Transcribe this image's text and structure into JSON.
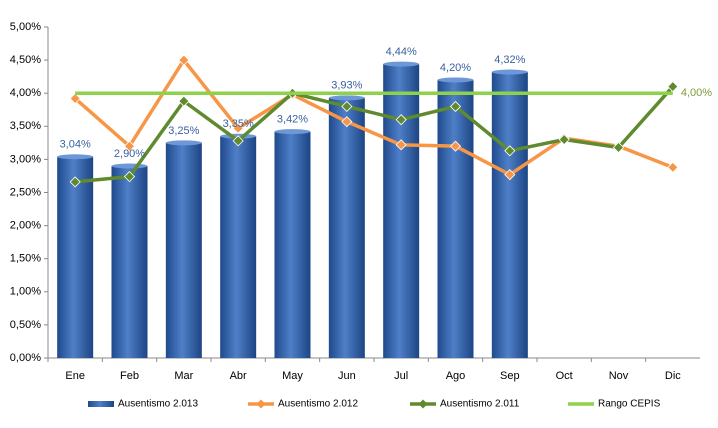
{
  "chart_data": {
    "type": "bar",
    "categories": [
      "Ene",
      "Feb",
      "Mar",
      "Abr",
      "May",
      "Jun",
      "Jul",
      "Ago",
      "Sep",
      "Oct",
      "Nov",
      "Dic"
    ],
    "ylim": [
      0,
      5
    ],
    "yticks": [
      {
        "value": 0,
        "label": "0,00%"
      },
      {
        "value": 0.5,
        "label": "0,50%"
      },
      {
        "value": 1,
        "label": "1,00%"
      },
      {
        "value": 1.5,
        "label": "1,50%"
      },
      {
        "value": 2,
        "label": "2,00%"
      },
      {
        "value": 2.5,
        "label": "2,50%"
      },
      {
        "value": 3,
        "label": "3,00%"
      },
      {
        "value": 3.5,
        "label": "3,50%"
      },
      {
        "value": 4,
        "label": "4,00%"
      },
      {
        "value": 4.5,
        "label": "4,50%"
      },
      {
        "value": 5,
        "label": "5,00%"
      }
    ],
    "grid": false,
    "legend": "bottom",
    "series": [
      {
        "name": "Ausentismo 2.013",
        "type": "bar",
        "color": "#2e5fa8",
        "values": [
          3.04,
          2.9,
          3.25,
          3.35,
          3.42,
          3.93,
          4.44,
          4.2,
          4.32,
          null,
          null,
          null
        ],
        "value_labels": [
          "3,04%",
          "2,90%",
          "3,25%",
          "3,35%",
          "3,42%",
          "3,93%",
          "4,44%",
          "4,20%",
          "4,32%",
          null,
          null,
          null
        ],
        "label_color": "#3a62a0"
      },
      {
        "name": "Ausentismo 2.012",
        "type": "line",
        "marker": "diamond",
        "color": "#f79646",
        "values": [
          3.92,
          3.2,
          4.5,
          3.47,
          3.98,
          3.57,
          3.22,
          3.2,
          2.77,
          3.32,
          3.2,
          2.88
        ]
      },
      {
        "name": "Ausentismo 2.011",
        "type": "line",
        "marker": "diamond",
        "color": "#5f8b2e",
        "values": [
          2.66,
          2.74,
          3.88,
          3.28,
          4.0,
          3.8,
          3.6,
          3.8,
          3.13,
          3.3,
          3.18,
          4.1
        ]
      },
      {
        "name": "Rango CEPIS",
        "type": "line",
        "color": "#8ed14b",
        "values": [
          4,
          4,
          4,
          4,
          4,
          4,
          4,
          4,
          4,
          4,
          4,
          4
        ],
        "value_labels": [
          null,
          null,
          null,
          null,
          null,
          null,
          null,
          null,
          null,
          null,
          null,
          "4,00%"
        ],
        "label_color": "#7f9a3a"
      }
    ]
  }
}
